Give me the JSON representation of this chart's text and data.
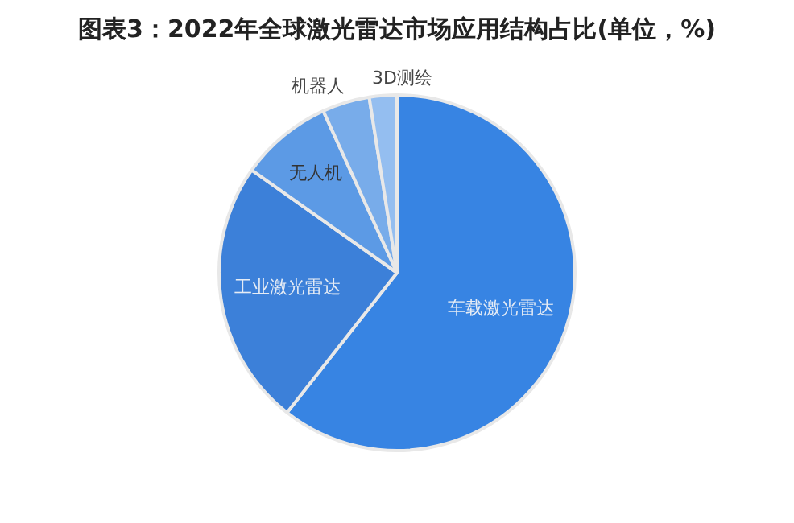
{
  "chart_data": {
    "type": "pie",
    "title": "图表3：2022年全球激光雷达市场应用结构占比(单位，%)",
    "categories": [
      "车载激光雷达",
      "工业激光雷达",
      "无人机",
      "机器人",
      "3D测绘"
    ],
    "values": [
      60.6,
      24.2,
      8.4,
      4.3,
      2.5
    ],
    "colors": [
      "#3784e3",
      "#3c80d9",
      "#5c9ae5",
      "#78acea",
      "#94bef0"
    ],
    "legend": false
  }
}
